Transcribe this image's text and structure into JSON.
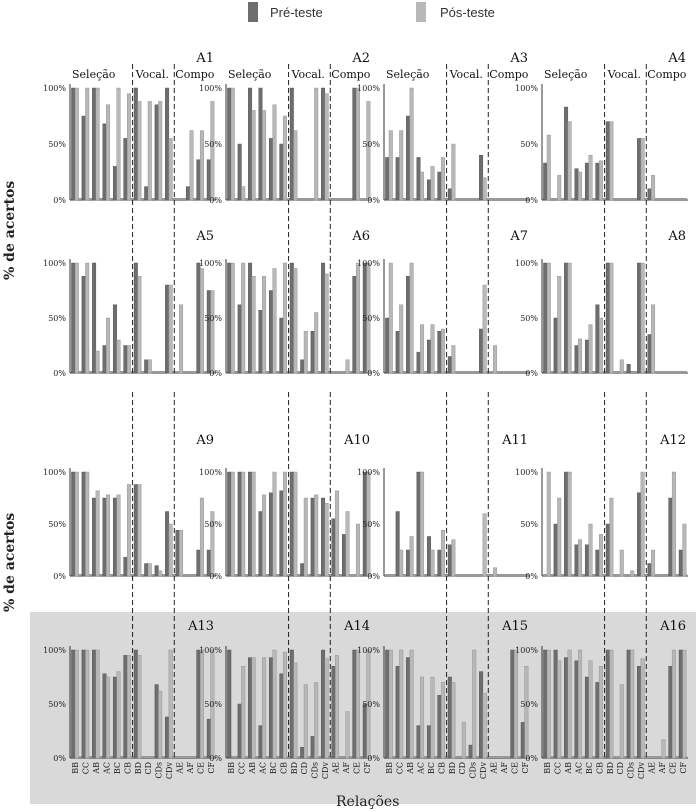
{
  "legend": [
    {
      "label": "Pré-teste",
      "color": "#6e6e6e"
    },
    {
      "label": "Pós-teste",
      "color": "#b8b8b8"
    }
  ],
  "ylabel": "% de acertos",
  "xlabel": "Relações",
  "yticks": [
    "0%",
    "50%",
    "100%"
  ],
  "phase_labels": [
    "Seleção",
    "Vocal.",
    "Compo"
  ],
  "categories": [
    "BB",
    "CC",
    "AB",
    "AC",
    "BC",
    "CB",
    "BD",
    "CD",
    "CDs",
    "CDv",
    "AE",
    "AF",
    "CE",
    "CF"
  ],
  "highlight_color": "#d9d9d9",
  "chart_data": [
    {
      "type": "bar",
      "title": "A1",
      "ylim": [
        0,
        100
      ],
      "series": [
        {
          "name": "Pré-teste",
          "values": [
            100,
            75,
            100,
            68,
            30,
            55,
            100,
            12,
            85,
            100,
            0,
            12,
            36,
            36
          ]
        },
        {
          "name": "Pós-teste",
          "values": [
            100,
            100,
            100,
            85,
            100,
            95,
            88,
            88,
            88,
            55,
            0,
            62,
            62,
            88
          ]
        }
      ]
    },
    {
      "type": "bar",
      "title": "A2",
      "ylim": [
        0,
        100
      ],
      "series": [
        {
          "name": "Pré-teste",
          "values": [
            100,
            50,
            100,
            100,
            55,
            50,
            100,
            0,
            0,
            100,
            0,
            0,
            100,
            0
          ]
        },
        {
          "name": "Pós-teste",
          "values": [
            100,
            12,
            80,
            80,
            85,
            75,
            62,
            0,
            100,
            95,
            0,
            0,
            100,
            88
          ]
        }
      ]
    },
    {
      "type": "bar",
      "title": "A3",
      "ylim": [
        0,
        100
      ],
      "series": [
        {
          "name": "Pré-teste",
          "values": [
            38,
            38,
            75,
            38,
            18,
            25,
            10,
            0,
            0,
            40,
            0,
            0,
            0,
            0
          ]
        },
        {
          "name": "Pós-teste",
          "values": [
            62,
            62,
            100,
            25,
            30,
            38,
            50,
            0,
            0,
            20,
            0,
            0,
            0,
            0
          ]
        }
      ]
    },
    {
      "type": "bar",
      "title": "A4",
      "ylim": [
        0,
        100
      ],
      "series": [
        {
          "name": "Pré-teste",
          "values": [
            33,
            0,
            83,
            28,
            33,
            33,
            70,
            0,
            0,
            55,
            10,
            0,
            0,
            0
          ]
        },
        {
          "name": "Pós-teste",
          "values": [
            58,
            22,
            70,
            25,
            40,
            35,
            70,
            0,
            0,
            55,
            22,
            0,
            0,
            0
          ]
        }
      ]
    },
    {
      "type": "bar",
      "title": "A5",
      "ylim": [
        0,
        100
      ],
      "series": [
        {
          "name": "Pré-teste",
          "values": [
            100,
            88,
            100,
            25,
            62,
            25,
            100,
            12,
            0,
            80,
            0,
            0,
            100,
            75
          ]
        },
        {
          "name": "Pós-teste",
          "values": [
            100,
            100,
            20,
            50,
            30,
            25,
            88,
            12,
            0,
            80,
            62,
            0,
            95,
            75
          ]
        }
      ]
    },
    {
      "type": "bar",
      "title": "A6",
      "ylim": [
        0,
        100
      ],
      "series": [
        {
          "name": "Pré-teste",
          "values": [
            100,
            62,
            100,
            57,
            75,
            50,
            100,
            12,
            38,
            100,
            0,
            0,
            88,
            100
          ]
        },
        {
          "name": "Pós-teste",
          "values": [
            100,
            100,
            88,
            88,
            95,
            100,
            95,
            38,
            55,
            90,
            0,
            12,
            100,
            100
          ]
        }
      ]
    },
    {
      "type": "bar",
      "title": "A7",
      "ylim": [
        0,
        100
      ],
      "series": [
        {
          "name": "Pré-teste",
          "values": [
            50,
            38,
            88,
            19,
            30,
            38,
            15,
            0,
            0,
            40,
            0,
            0,
            0,
            0
          ]
        },
        {
          "name": "Pós-teste",
          "values": [
            100,
            62,
            100,
            44,
            44,
            40,
            25,
            0,
            0,
            80,
            25,
            0,
            0,
            0
          ]
        }
      ]
    },
    {
      "type": "bar",
      "title": "A8",
      "ylim": [
        0,
        100
      ],
      "series": [
        {
          "name": "Pré-teste",
          "values": [
            100,
            50,
            100,
            25,
            30,
            62,
            100,
            0,
            8,
            100,
            35,
            0,
            0,
            0
          ]
        },
        {
          "name": "Pós-teste",
          "values": [
            100,
            88,
            100,
            31,
            44,
            50,
            100,
            12,
            0,
            100,
            62,
            0,
            0,
            0
          ]
        }
      ]
    },
    {
      "type": "bar",
      "title": "A9",
      "ylim": [
        0,
        100
      ],
      "series": [
        {
          "name": "Pré-teste",
          "values": [
            100,
            100,
            75,
            75,
            75,
            18,
            88,
            12,
            10,
            62,
            44,
            0,
            25,
            25
          ]
        },
        {
          "name": "Pós-teste",
          "values": [
            100,
            100,
            82,
            78,
            78,
            88,
            88,
            12,
            5,
            50,
            44,
            0,
            75,
            62
          ]
        }
      ]
    },
    {
      "type": "bar",
      "title": "A10",
      "ylim": [
        0,
        100
      ],
      "series": [
        {
          "name": "Pré-teste",
          "values": [
            100,
            100,
            100,
            62,
            80,
            82,
            100,
            12,
            75,
            75,
            55,
            40,
            0,
            100
          ]
        },
        {
          "name": "Pós-teste",
          "values": [
            100,
            100,
            100,
            78,
            100,
            100,
            100,
            75,
            78,
            70,
            82,
            62,
            50,
            100
          ]
        }
      ]
    },
    {
      "type": "bar",
      "title": "A11",
      "ylim": [
        0,
        100
      ],
      "series": [
        {
          "name": "Pré-teste",
          "values": [
            0,
            62,
            25,
            100,
            38,
            25,
            30,
            0,
            0,
            0,
            0,
            0,
            0,
            0
          ]
        },
        {
          "name": "Pós-teste",
          "values": [
            0,
            25,
            38,
            100,
            25,
            44,
            35,
            0,
            0,
            60,
            8,
            0,
            0,
            0
          ]
        }
      ]
    },
    {
      "type": "bar",
      "title": "A12",
      "ylim": [
        0,
        100
      ],
      "series": [
        {
          "name": "Pré-teste",
          "values": [
            0,
            50,
            100,
            30,
            30,
            25,
            50,
            0,
            0,
            80,
            12,
            0,
            75,
            25
          ]
        },
        {
          "name": "Pós-teste",
          "values": [
            100,
            75,
            100,
            35,
            50,
            40,
            75,
            25,
            5,
            100,
            25,
            0,
            100,
            50
          ]
        }
      ]
    },
    {
      "type": "bar",
      "title": "A13",
      "ylim": [
        0,
        100
      ],
      "series": [
        {
          "name": "Pré-teste",
          "values": [
            100,
            100,
            100,
            78,
            75,
            95,
            100,
            0,
            68,
            38,
            0,
            0,
            100,
            36
          ]
        },
        {
          "name": "Pós-teste",
          "values": [
            100,
            100,
            100,
            75,
            80,
            95,
            95,
            0,
            62,
            100,
            0,
            0,
            100,
            100
          ]
        }
      ]
    },
    {
      "type": "bar",
      "title": "A14",
      "ylim": [
        0,
        100
      ],
      "series": [
        {
          "name": "Pré-teste",
          "values": [
            100,
            50,
            93,
            30,
            93,
            78,
            100,
            10,
            20,
            100,
            85,
            0,
            100,
            50
          ]
        },
        {
          "name": "Pós-teste",
          "values": [
            0,
            85,
            93,
            93,
            100,
            98,
            88,
            68,
            70,
            92,
            95,
            43,
            100,
            100
          ]
        }
      ]
    },
    {
      "type": "bar",
      "title": "A15",
      "ylim": [
        0,
        100
      ],
      "series": [
        {
          "name": "Pré-teste",
          "values": [
            100,
            85,
            93,
            30,
            30,
            58,
            75,
            0,
            12,
            80,
            0,
            0,
            100,
            33
          ]
        },
        {
          "name": "Pós-teste",
          "values": [
            100,
            100,
            100,
            75,
            75,
            70,
            70,
            33,
            100,
            60,
            0,
            0,
            100,
            85
          ]
        }
      ]
    },
    {
      "type": "bar",
      "title": "A16",
      "ylim": [
        0,
        100
      ],
      "series": [
        {
          "name": "Pré-teste",
          "values": [
            100,
            100,
            93,
            90,
            75,
            70,
            100,
            0,
            100,
            85,
            0,
            0,
            85,
            100
          ]
        },
        {
          "name": "Pós-teste",
          "values": [
            100,
            90,
            100,
            100,
            90,
            85,
            100,
            68,
            100,
            92,
            0,
            17,
            100,
            100
          ]
        }
      ]
    }
  ]
}
